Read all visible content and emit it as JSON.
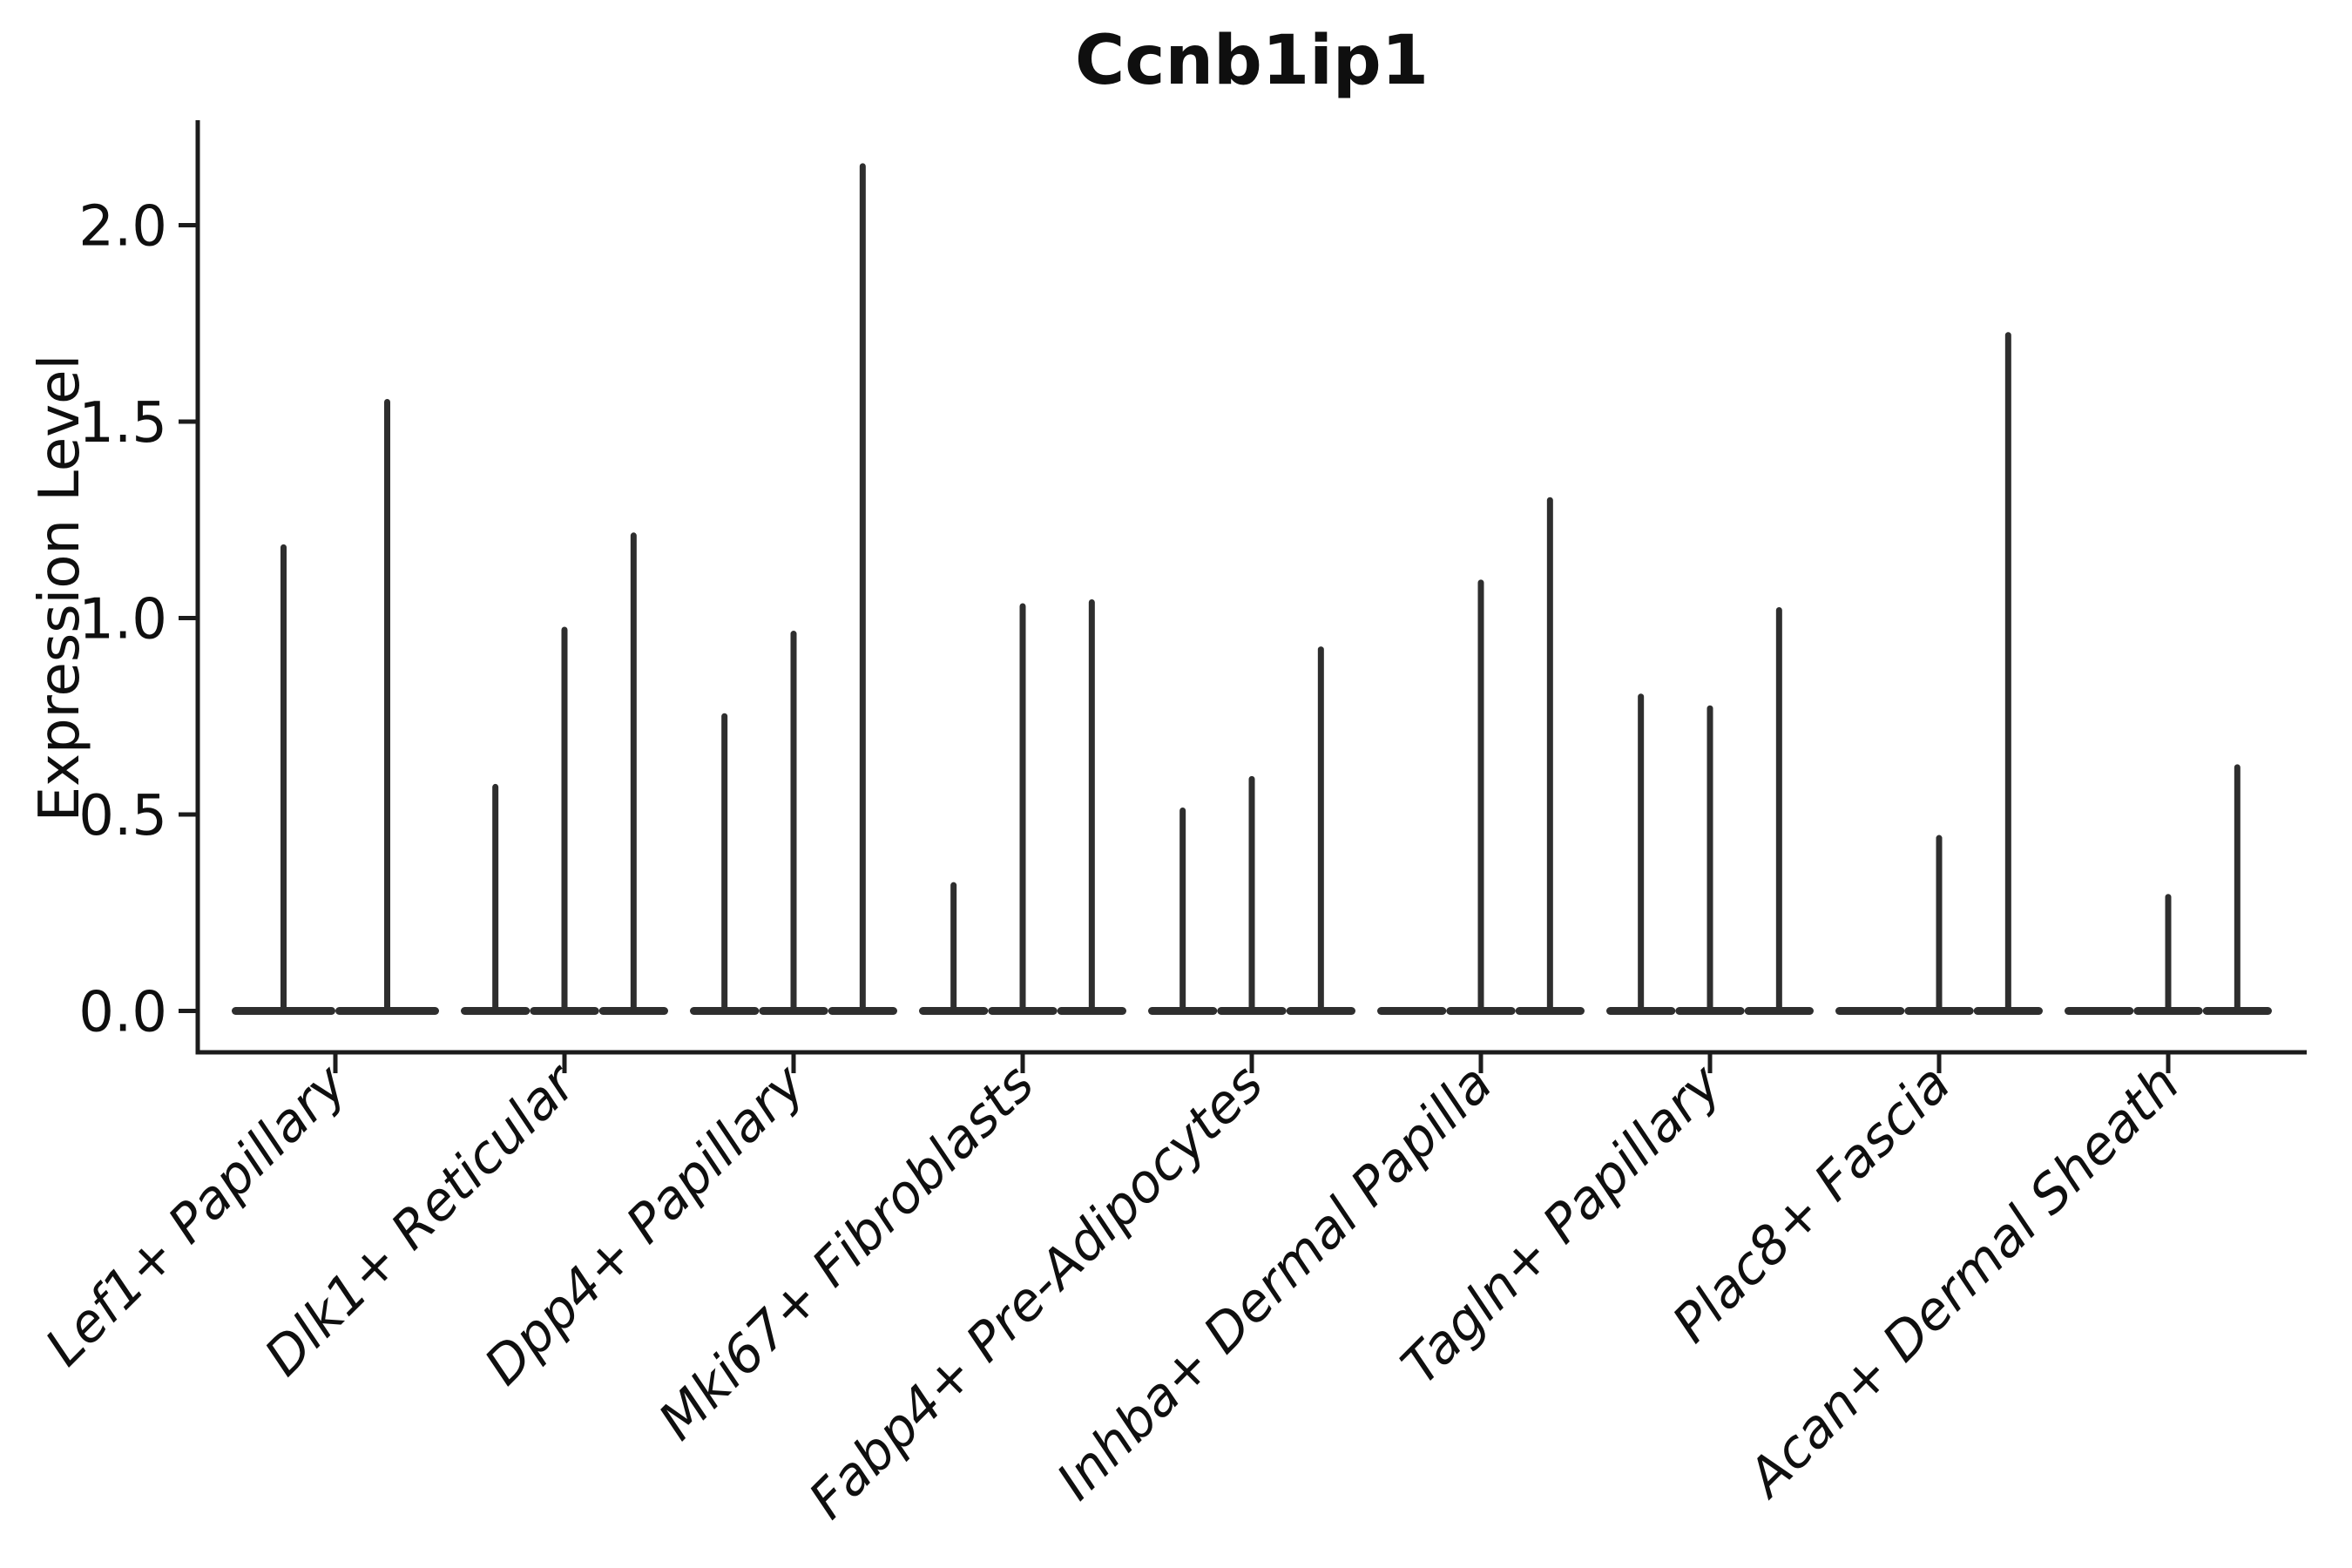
{
  "title": "Ccnb1ip1",
  "y_axis": {
    "label": "Expression Level",
    "tick_labels": [
      "0.0",
      "0.5",
      "1.0",
      "1.5",
      "2.0"
    ]
  },
  "chart_data": {
    "type": "violin",
    "title": "Ccnb1ip1",
    "xlabel": "",
    "ylabel": "Expression Level",
    "ylim": [
      -0.11,
      2.27
    ],
    "yticks": [
      0.0,
      0.5,
      1.0,
      1.5,
      2.0
    ],
    "grid": false,
    "legend": "none",
    "x_tick_rotation_deg": 45,
    "categories": [
      "Lef1+ Papillary",
      "Dlk1+ Reticular",
      "Dpp4+ Papillary",
      "Mki67+ Fibroblasts",
      "Fabp4+ Pre-Adipocytes",
      "Inhba+ Dermal Papilla",
      "Tagln+ Papillary",
      "Plac8+ Fascia",
      "Acan+ Dermal Sheath"
    ],
    "series": [
      {
        "name": "Lef1+ Papillary",
        "violin_maxima": [
          1.18,
          1.55
        ]
      },
      {
        "name": "Dlk1+ Reticular",
        "violin_maxima": [
          0.57,
          0.97,
          1.21
        ]
      },
      {
        "name": "Dpp4+ Papillary",
        "violin_maxima": [
          0.75,
          0.96,
          2.15
        ]
      },
      {
        "name": "Mki67+ Fibroblasts",
        "violin_maxima": [
          0.32,
          1.03,
          1.04
        ]
      },
      {
        "name": "Fabp4+ Pre-Adipocytes",
        "violin_maxima": [
          0.51,
          0.59,
          0.92
        ]
      },
      {
        "name": "Inhba+ Dermal Papilla",
        "violin_maxima": [
          0.0,
          1.09,
          1.3
        ]
      },
      {
        "name": "Tagln+ Papillary",
        "violin_maxima": [
          0.8,
          0.77,
          1.02
        ]
      },
      {
        "name": "Plac8+ Fascia",
        "violin_maxima": [
          0.0,
          0.44,
          1.72
        ]
      },
      {
        "name": "Acan+ Dermal Sheath",
        "violin_maxima": [
          0.0,
          0.29,
          0.62
        ]
      }
    ]
  },
  "colors": {
    "violin_line": "#2e2e2e",
    "spine": "#1c1c1c",
    "text": "#0f0f0f",
    "background": "#ffffff"
  }
}
